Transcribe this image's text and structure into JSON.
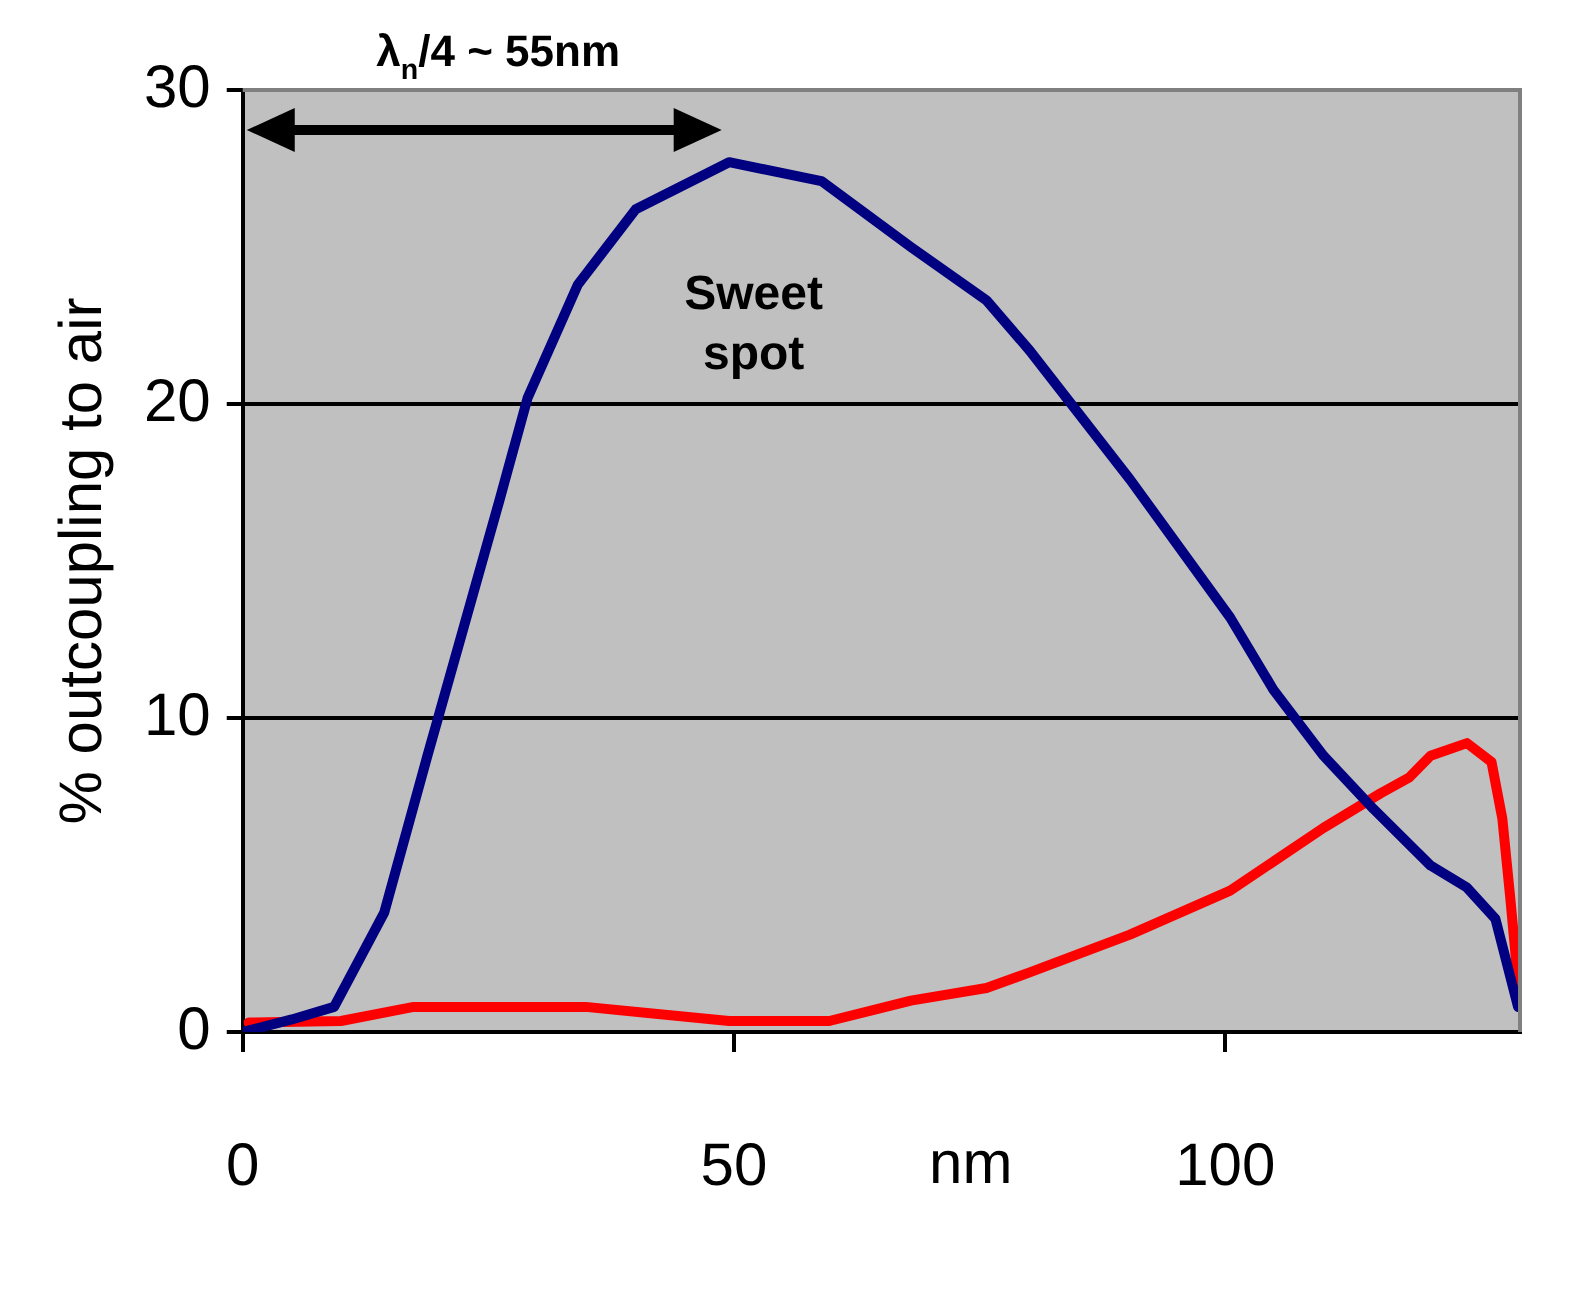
{
  "chart_data": {
    "type": "line",
    "xlabel": "nm",
    "ylabel": "% outcoupling to air",
    "xlim": [
      0,
      130
    ],
    "xticks": [
      0,
      50,
      100
    ],
    "ylim": [
      0,
      30
    ],
    "yticks": [
      0,
      10,
      20,
      30
    ],
    "grid": "y",
    "legend": false,
    "marker": "none",
    "line_style": "solid",
    "annotations": [
      "λ$_{n}$/4 ~ 55nm",
      "Sweet spot"
    ],
    "series": [
      {
        "color": "#000080",
        "x": [
          0,
          5,
          9.3,
          14.4,
          18.8,
          22.5,
          26.1,
          29,
          34.1,
          40,
          49.5,
          58.9,
          68,
          75.7,
          80.1,
          90.3,
          100.5,
          104.9,
          110,
          115.1,
          120.9,
          124.6,
          127.5,
          129.8
        ],
        "values": [
          0,
          0.4,
          0.8,
          3.8,
          8.8,
          12.9,
          16.9,
          20.2,
          23.8,
          26.2,
          27.7,
          27.1,
          25,
          23.3,
          21.7,
          17.6,
          13.2,
          10.9,
          8.8,
          7.1,
          5.3,
          4.6,
          3.6,
          0.8
        ]
      },
      {
        "color": "#ff0000",
        "x": [
          0.6,
          10,
          17.4,
          34.9,
          49.5,
          59.7,
          68,
          75.7,
          80.1,
          90.3,
          100.5,
          110,
          115.8,
          118.7,
          120.9,
          124.6,
          127.1,
          128.2,
          129,
          129.8
        ],
        "values": [
          0.3,
          0.35,
          0.8,
          0.8,
          0.35,
          0.35,
          1,
          1.4,
          1.9,
          3.1,
          4.5,
          6.5,
          7.6,
          8.1,
          8.8,
          9.2,
          8.6,
          6.8,
          4.3,
          1.6
        ]
      }
    ]
  }
}
